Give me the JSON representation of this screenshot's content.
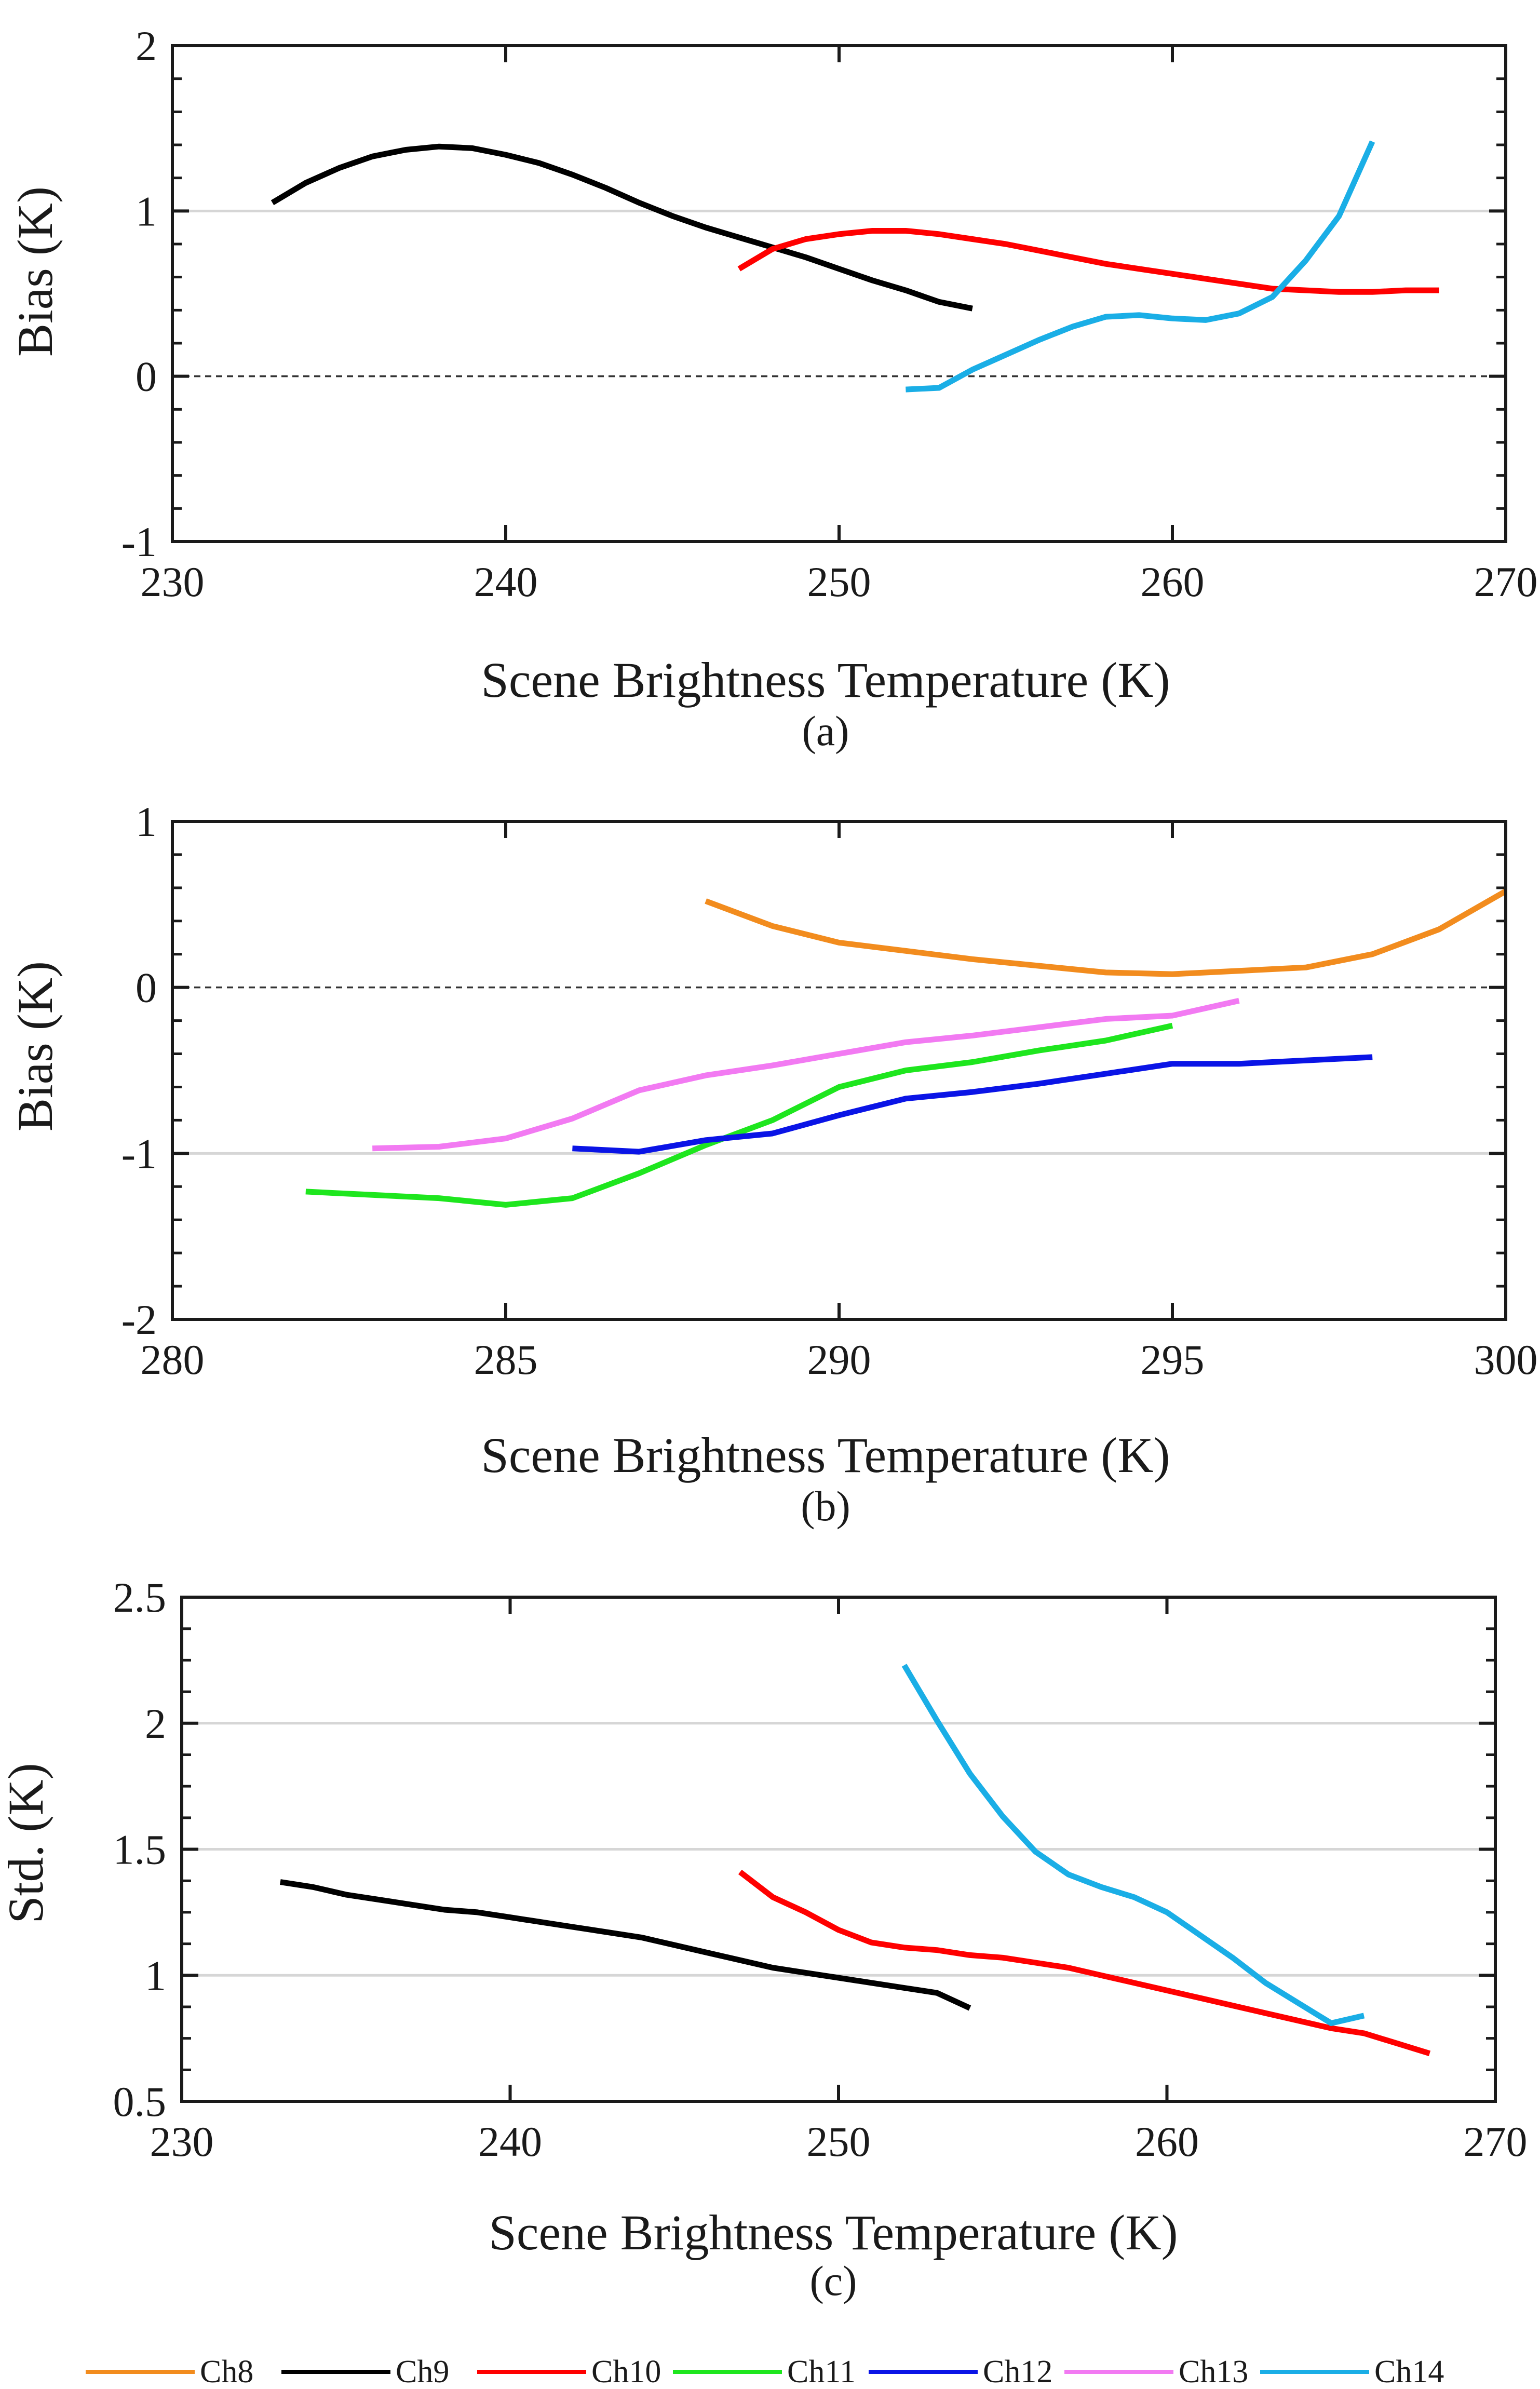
{
  "chart_data": [
    {
      "type": "line",
      "label": "(a)",
      "xlabel": "Scene Brightness Temperature (K)",
      "ylabel": "Bias (K)",
      "xlim": [
        230,
        270
      ],
      "ylim": [
        -1,
        2
      ],
      "xticks": [
        230,
        240,
        250,
        260,
        270
      ],
      "yticks": [
        -1,
        0,
        1,
        2
      ],
      "ytick_labels": [
        "-1",
        "0",
        "1",
        "2"
      ],
      "grid": "horizontal at y = 1 and y = -1",
      "reference_line": {
        "y": 0,
        "style": "dashed"
      },
      "series": [
        {
          "name": "Ch9",
          "color": "#000000",
          "x": [
            233,
            234,
            235,
            236,
            237,
            238,
            239,
            240,
            241,
            242,
            243,
            244,
            245,
            246,
            247,
            248,
            249,
            250,
            251,
            252,
            253,
            254
          ],
          "y": [
            1.05,
            1.17,
            1.26,
            1.33,
            1.37,
            1.39,
            1.38,
            1.34,
            1.29,
            1.22,
            1.14,
            1.05,
            0.97,
            0.9,
            0.84,
            0.78,
            0.72,
            0.65,
            0.58,
            0.52,
            0.45,
            0.41
          ]
        },
        {
          "name": "Ch10",
          "color": "#ff0000",
          "x": [
            247,
            248,
            249,
            250,
            251,
            252,
            253,
            254,
            255,
            256,
            257,
            258,
            259,
            260,
            261,
            262,
            263,
            264,
            265,
            266,
            267,
            268
          ],
          "y": [
            0.65,
            0.77,
            0.83,
            0.86,
            0.88,
            0.88,
            0.86,
            0.83,
            0.8,
            0.76,
            0.72,
            0.68,
            0.65,
            0.62,
            0.59,
            0.56,
            0.53,
            0.52,
            0.51,
            0.51,
            0.52,
            0.52
          ]
        },
        {
          "name": "Ch14",
          "color": "#1aaee6",
          "x": [
            252,
            253,
            254,
            255,
            256,
            257,
            258,
            259,
            260,
            261,
            262,
            263,
            264,
            265,
            266
          ],
          "y": [
            -0.08,
            -0.07,
            0.04,
            0.13,
            0.22,
            0.3,
            0.36,
            0.37,
            0.35,
            0.34,
            0.38,
            0.48,
            0.7,
            0.97,
            1.42
          ]
        }
      ]
    },
    {
      "type": "line",
      "label": "(b)",
      "xlabel": "Scene Brightness Temperature (K)",
      "ylabel": "Bias (K)",
      "xlim": [
        280,
        300
      ],
      "ylim": [
        -2,
        1
      ],
      "xticks": [
        280,
        285,
        290,
        295,
        300
      ],
      "yticks": [
        -2,
        -1,
        0,
        1
      ],
      "ytick_labels": [
        "-2",
        "-1",
        "0",
        "1"
      ],
      "grid": "horizontal at y = -1",
      "reference_line": {
        "y": 0,
        "style": "dashed"
      },
      "series": [
        {
          "name": "Ch8",
          "color": "#f28c1e",
          "x": [
            288,
            289,
            290,
            291,
            292,
            293,
            294,
            295,
            296,
            297,
            298,
            299,
            300
          ],
          "y": [
            0.52,
            0.37,
            0.27,
            0.22,
            0.17,
            0.13,
            0.09,
            0.08,
            0.1,
            0.12,
            0.2,
            0.35,
            0.58
          ]
        },
        {
          "name": "Ch11",
          "color": "#1ee61e",
          "x": [
            282,
            283,
            284,
            285,
            286,
            287,
            288,
            289,
            290,
            291,
            292,
            293,
            294,
            295
          ],
          "y": [
            -1.23,
            -1.25,
            -1.27,
            -1.31,
            -1.27,
            -1.12,
            -0.95,
            -0.8,
            -0.6,
            -0.5,
            -0.45,
            -0.38,
            -0.32,
            -0.23
          ]
        },
        {
          "name": "Ch12",
          "color": "#0a14e6",
          "x": [
            286,
            287,
            288,
            289,
            290,
            291,
            292,
            293,
            294,
            295,
            296,
            297,
            298
          ],
          "y": [
            -0.97,
            -0.99,
            -0.92,
            -0.88,
            -0.77,
            -0.67,
            -0.63,
            -0.58,
            -0.52,
            -0.46,
            -0.46,
            -0.44,
            -0.42
          ]
        },
        {
          "name": "Ch13",
          "color": "#f27af2",
          "x": [
            283,
            284,
            285,
            286,
            287,
            288,
            289,
            290,
            291,
            292,
            293,
            294,
            295,
            296
          ],
          "y": [
            -0.97,
            -0.96,
            -0.91,
            -0.79,
            -0.62,
            -0.53,
            -0.47,
            -0.4,
            -0.33,
            -0.29,
            -0.24,
            -0.19,
            -0.17,
            -0.08
          ]
        }
      ]
    },
    {
      "type": "line",
      "label": "(c)",
      "xlabel": "Scene Brightness Temperature (K)",
      "ylabel": "Std. (K)",
      "xlim": [
        230,
        270
      ],
      "ylim": [
        0.5,
        2.5
      ],
      "xticks": [
        230,
        240,
        250,
        260,
        270
      ],
      "yticks": [
        0.5,
        1,
        1.5,
        2,
        2.5
      ],
      "ytick_labels": [
        "0.5",
        "1",
        "1.5",
        "2",
        "2.5"
      ],
      "grid": "horizontal at y = 1, 1.5, 2",
      "series": [
        {
          "name": "Ch9",
          "color": "#000000",
          "x": [
            233,
            234,
            235,
            236,
            237,
            238,
            239,
            240,
            241,
            242,
            243,
            244,
            245,
            246,
            247,
            248,
            249,
            250,
            251,
            252,
            253,
            254
          ],
          "y": [
            1.37,
            1.35,
            1.32,
            1.3,
            1.28,
            1.26,
            1.25,
            1.23,
            1.21,
            1.19,
            1.17,
            1.15,
            1.12,
            1.09,
            1.06,
            1.03,
            1.01,
            0.99,
            0.97,
            0.95,
            0.93,
            0.87
          ]
        },
        {
          "name": "Ch10",
          "color": "#ff0000",
          "x": [
            247,
            248,
            249,
            250,
            251,
            252,
            253,
            254,
            255,
            256,
            257,
            258,
            259,
            260,
            261,
            262,
            263,
            264,
            265,
            266,
            267,
            268
          ],
          "y": [
            1.41,
            1.31,
            1.25,
            1.18,
            1.13,
            1.11,
            1.1,
            1.08,
            1.07,
            1.05,
            1.03,
            1.0,
            0.97,
            0.94,
            0.91,
            0.88,
            0.85,
            0.82,
            0.79,
            0.77,
            0.73,
            0.69
          ]
        },
        {
          "name": "Ch14",
          "color": "#1aaee6",
          "x": [
            252,
            253,
            254,
            255,
            256,
            257,
            258,
            259,
            260,
            261,
            262,
            263,
            264,
            265,
            266
          ],
          "y": [
            2.23,
            2.01,
            1.8,
            1.63,
            1.49,
            1.4,
            1.35,
            1.31,
            1.25,
            1.16,
            1.07,
            0.97,
            0.89,
            0.81,
            0.84
          ]
        }
      ]
    }
  ],
  "legend": {
    "placement": "bottom",
    "items": [
      {
        "name": "Ch8",
        "color": "#f28c1e"
      },
      {
        "name": "Ch9",
        "color": "#000000"
      },
      {
        "name": "Ch10",
        "color": "#ff0000"
      },
      {
        "name": "Ch11",
        "color": "#1ee61e"
      },
      {
        "name": "Ch12",
        "color": "#0a14e6"
      },
      {
        "name": "Ch13",
        "color": "#f27af2"
      },
      {
        "name": "Ch14",
        "color": "#1aaee6"
      }
    ]
  }
}
